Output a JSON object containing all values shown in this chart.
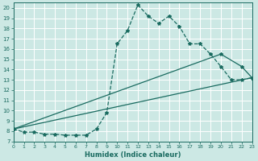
{
  "title": "",
  "xlabel": "Humidex (Indice chaleur)",
  "bg_color": "#cce8e4",
  "grid_color": "#b0d8d2",
  "line_color": "#1a6b60",
  "xlim": [
    0,
    23
  ],
  "ylim": [
    7,
    20.5
  ],
  "xticks": [
    0,
    1,
    2,
    3,
    4,
    5,
    6,
    7,
    8,
    9,
    10,
    11,
    12,
    13,
    14,
    15,
    16,
    17,
    18,
    19,
    20,
    21,
    22,
    23
  ],
  "yticks": [
    7,
    8,
    9,
    10,
    11,
    12,
    13,
    14,
    15,
    16,
    17,
    18,
    19,
    20
  ],
  "line1_x": [
    0,
    1,
    2,
    3,
    4,
    5,
    6,
    7,
    8,
    9,
    10,
    11,
    12,
    13,
    14,
    15,
    16,
    17,
    18,
    19,
    20,
    21,
    22,
    23
  ],
  "line1_y": [
    8.2,
    7.9,
    7.9,
    7.7,
    7.7,
    7.6,
    7.6,
    7.6,
    8.2,
    9.8,
    16.5,
    17.8,
    20.3,
    19.2,
    18.5,
    19.2,
    18.2,
    16.5,
    16.5,
    15.5,
    14.3,
    13.0,
    13.0,
    13.2
  ],
  "line2_x": [
    0,
    23
  ],
  "line2_y": [
    8.2,
    13.2
  ],
  "line3_x": [
    0,
    20,
    22,
    23
  ],
  "line3_y": [
    8.2,
    15.5,
    14.3,
    13.2
  ]
}
